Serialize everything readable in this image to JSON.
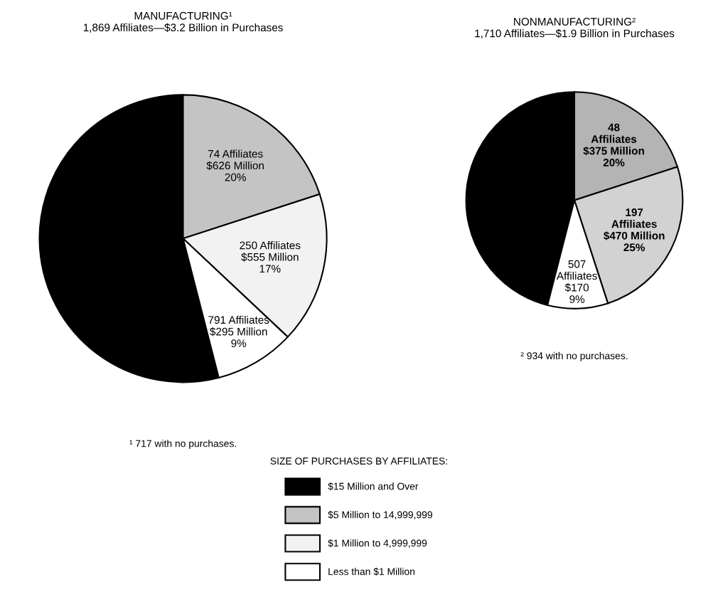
{
  "chart_data": [
    {
      "type": "pie",
      "title": "MANUFACTURING¹",
      "subtitle": "1,869 Affiliates—$3.2 Billion in Purchases",
      "categories": [
        "$15 Million and Over",
        "$5 Million to 14,999,999",
        "$1 Million to 4,999,999",
        "Less than $1 Million"
      ],
      "values": [
        54,
        20,
        17,
        9
      ],
      "colors": [
        "#000000",
        "#c4c4c4",
        "#f2f2f2",
        "#ffffff"
      ],
      "value_labels": [
        null,
        "74 Affiliates\n$626 Million\n20%",
        "250 Affiliates\n$555 Million\n17%",
        "791 Affiliates\n$295 Million\n9%"
      ],
      "annotations": [
        "¹ 717 with no purchases."
      ],
      "legend": "bottom",
      "legend_title": "SIZE OF PURCHASES BY AFFILIATES:"
    },
    {
      "type": "pie",
      "title": "NONMANUFACTURING²",
      "subtitle": "1,710 Affiliates—$1.9 Billion in Purchases",
      "categories": [
        null,
        null,
        null,
        null
      ],
      "values": [
        46,
        20,
        25,
        9
      ],
      "colors": [
        "#000000",
        "#b4b4b4",
        "#d2d2d2",
        "#ffffff"
      ],
      "value_labels": [
        null,
        "48\nAffiliates\n$375 Million\n20%",
        "197\nAffiliates\n$470 Million\n25%",
        "507\nAffiliates\n$170\n9%"
      ],
      "annotations": [
        "² 934 with no purchases."
      ]
    }
  ]
}
